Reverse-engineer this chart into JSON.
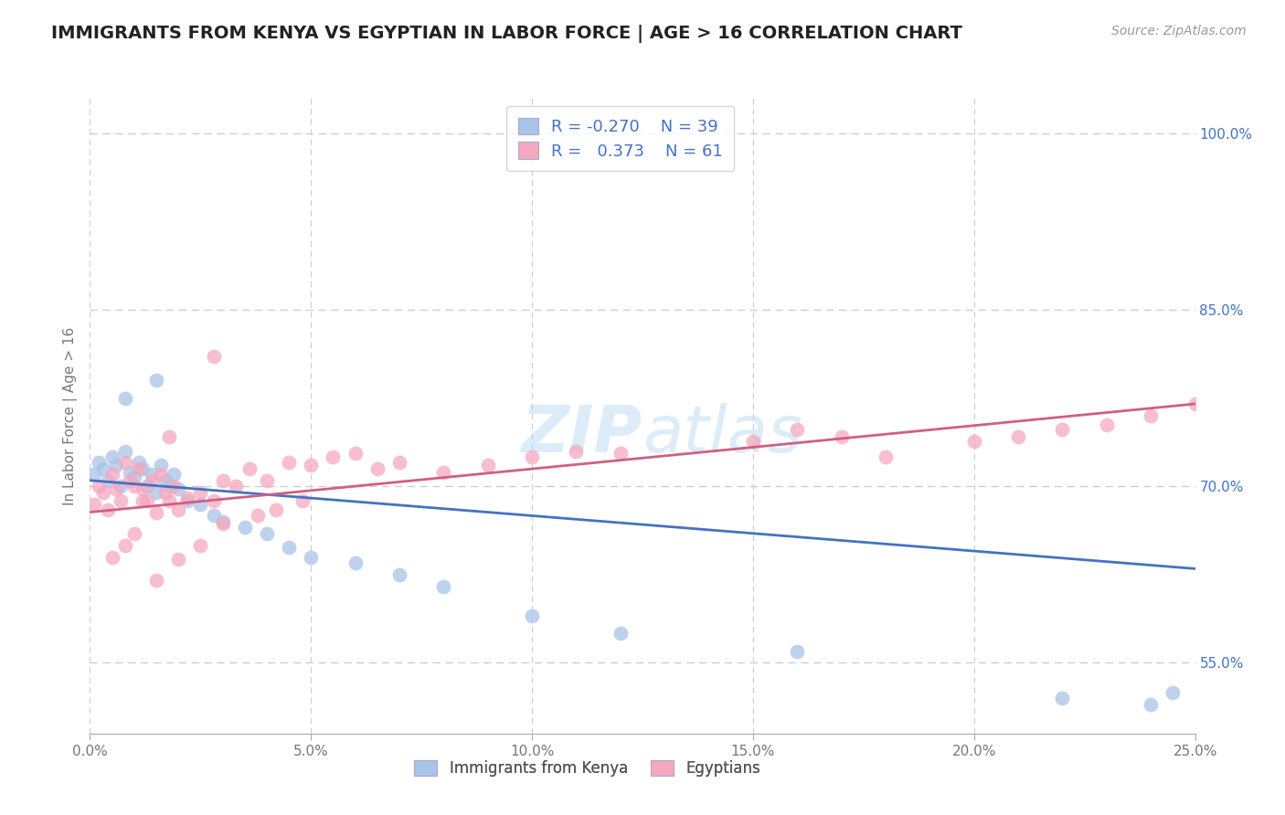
{
  "title": "IMMIGRANTS FROM KENYA VS EGYPTIAN IN LABOR FORCE | AGE > 16 CORRELATION CHART",
  "source_text": "Source: ZipAtlas.com",
  "ylabel": "In Labor Force | Age > 16",
  "xlim": [
    0.0,
    0.25
  ],
  "ylim": [
    0.49,
    1.03
  ],
  "xticks": [
    0.0,
    0.05,
    0.1,
    0.15,
    0.2,
    0.25
  ],
  "xtick_labels": [
    "0.0%",
    "5.0%",
    "10.0%",
    "15.0%",
    "20.0%",
    "25.0%"
  ],
  "yticks": [
    0.55,
    0.7,
    0.85,
    1.0
  ],
  "ytick_labels": [
    "55.0%",
    "70.0%",
    "85.0%",
    "100.0%"
  ],
  "kenya_color": "#a8c4e8",
  "egypt_color": "#f5a8bf",
  "kenya_line_color": "#4472C4",
  "egypt_line_color": "#d06080",
  "background_color": "#ffffff",
  "grid_color": "#ccccdd",
  "kenya_x": [
    0.001,
    0.002,
    0.003,
    0.004,
    0.005,
    0.006,
    0.007,
    0.008,
    0.009,
    0.01,
    0.011,
    0.012,
    0.013,
    0.014,
    0.015,
    0.016,
    0.017,
    0.018,
    0.019,
    0.02,
    0.022,
    0.025,
    0.028,
    0.03,
    0.035,
    0.04,
    0.045,
    0.05,
    0.06,
    0.07,
    0.08,
    0.1,
    0.12,
    0.16,
    0.22,
    0.24,
    0.245,
    0.015,
    0.008
  ],
  "kenya_y": [
    0.71,
    0.72,
    0.715,
    0.705,
    0.725,
    0.718,
    0.7,
    0.73,
    0.712,
    0.708,
    0.72,
    0.715,
    0.7,
    0.71,
    0.695,
    0.718,
    0.705,
    0.7,
    0.71,
    0.698,
    0.688,
    0.685,
    0.675,
    0.67,
    0.665,
    0.66,
    0.648,
    0.64,
    0.635,
    0.625,
    0.615,
    0.59,
    0.575,
    0.56,
    0.52,
    0.515,
    0.525,
    0.79,
    0.775
  ],
  "egypt_x": [
    0.001,
    0.002,
    0.003,
    0.004,
    0.005,
    0.006,
    0.007,
    0.008,
    0.009,
    0.01,
    0.011,
    0.012,
    0.013,
    0.014,
    0.015,
    0.016,
    0.017,
    0.018,
    0.019,
    0.02,
    0.022,
    0.025,
    0.028,
    0.03,
    0.033,
    0.036,
    0.04,
    0.045,
    0.05,
    0.06,
    0.065,
    0.07,
    0.08,
    0.09,
    0.1,
    0.11,
    0.12,
    0.15,
    0.16,
    0.17,
    0.18,
    0.2,
    0.21,
    0.22,
    0.23,
    0.24,
    0.25,
    0.005,
    0.008,
    0.01,
    0.015,
    0.02,
    0.025,
    0.03,
    0.038,
    0.042,
    0.048,
    0.055,
    0.028,
    0.018,
    0.012
  ],
  "egypt_y": [
    0.685,
    0.7,
    0.695,
    0.68,
    0.71,
    0.698,
    0.688,
    0.72,
    0.705,
    0.7,
    0.715,
    0.698,
    0.688,
    0.705,
    0.678,
    0.71,
    0.695,
    0.688,
    0.7,
    0.68,
    0.69,
    0.695,
    0.688,
    0.705,
    0.7,
    0.715,
    0.705,
    0.72,
    0.718,
    0.728,
    0.715,
    0.72,
    0.712,
    0.718,
    0.725,
    0.73,
    0.728,
    0.738,
    0.748,
    0.742,
    0.725,
    0.738,
    0.742,
    0.748,
    0.752,
    0.76,
    0.77,
    0.64,
    0.65,
    0.66,
    0.62,
    0.638,
    0.65,
    0.668,
    0.675,
    0.68,
    0.688,
    0.725,
    0.81,
    0.742,
    0.688
  ],
  "kenya_trendline_x": [
    0.0,
    0.25
  ],
  "kenya_trendline_y": [
    0.705,
    0.63
  ],
  "egypt_trendline_x": [
    0.0,
    0.25
  ],
  "egypt_trendline_y": [
    0.678,
    0.77
  ]
}
